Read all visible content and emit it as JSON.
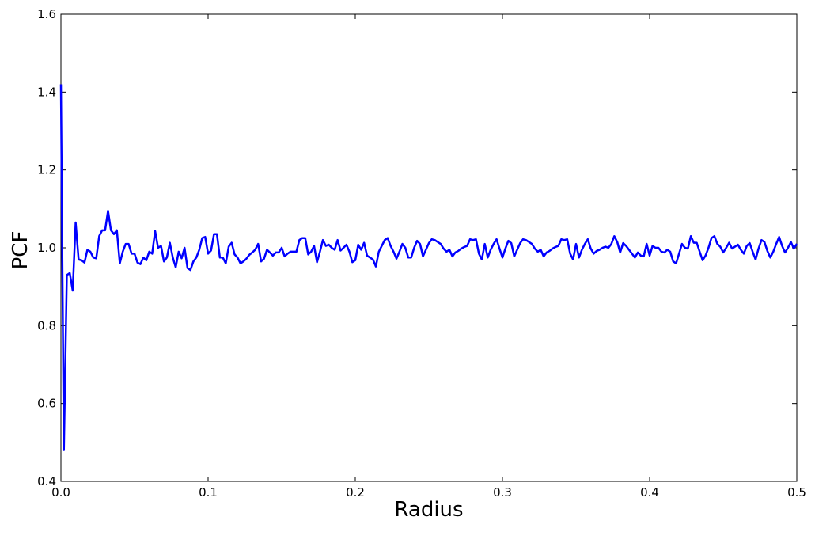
{
  "chart_data": {
    "type": "line",
    "xlabel": "Radius",
    "ylabel": "PCF",
    "xlim": [
      0,
      0.5
    ],
    "ylim": [
      0.4,
      1.6
    ],
    "xticks": [
      {
        "value": 0,
        "label": "0.0"
      },
      0.1,
      0.2,
      0.3,
      0.4,
      0.5
    ],
    "yticks": [
      0.4,
      0.6,
      0.8,
      {
        "value": 1,
        "label": "1.0"
      },
      1.2,
      1.4,
      1.6
    ],
    "x": [
      0,
      0.002,
      0.004,
      0.006,
      0.008,
      0.01,
      0.012,
      0.014,
      0.016,
      0.018,
      0.02,
      0.022,
      0.024,
      0.026,
      0.028,
      0.03,
      0.032,
      0.034,
      0.036,
      0.038,
      0.04,
      0.042,
      0.044,
      0.046,
      0.048,
      0.05,
      0.052,
      0.054,
      0.056,
      0.058,
      0.06,
      0.062,
      0.064,
      0.066,
      0.068,
      0.07,
      0.072,
      0.074,
      0.076,
      0.078,
      0.08,
      0.082,
      0.084,
      0.086,
      0.088,
      0.09,
      0.092,
      0.094,
      0.096,
      0.098,
      0.1,
      0.102,
      0.104,
      0.106,
      0.108,
      0.11,
      0.112,
      0.114,
      0.116,
      0.118,
      0.12,
      0.122,
      0.124,
      0.126,
      0.128,
      0.13,
      0.132,
      0.134,
      0.136,
      0.138,
      0.14,
      0.142,
      0.144,
      0.146,
      0.148,
      0.15,
      0.152,
      0.154,
      0.156,
      0.158,
      0.16,
      0.162,
      0.164,
      0.166,
      0.168,
      0.17,
      0.172,
      0.174,
      0.176,
      0.178,
      0.18,
      0.182,
      0.184,
      0.186,
      0.188,
      0.19,
      0.192,
      0.194,
      0.196,
      0.198,
      0.2,
      0.202,
      0.204,
      0.206,
      0.208,
      0.21,
      0.212,
      0.214,
      0.216,
      0.218,
      0.22,
      0.222,
      0.224,
      0.226,
      0.228,
      0.23,
      0.232,
      0.234,
      0.236,
      0.238,
      0.24,
      0.242,
      0.244,
      0.246,
      0.248,
      0.25,
      0.252,
      0.254,
      0.256,
      0.258,
      0.26,
      0.262,
      0.264,
      0.266,
      0.268,
      0.27,
      0.272,
      0.274,
      0.276,
      0.278,
      0.28,
      0.282,
      0.284,
      0.286,
      0.288,
      0.29,
      0.292,
      0.294,
      0.296,
      0.298,
      0.3,
      0.302,
      0.304,
      0.306,
      0.308,
      0.31,
      0.312,
      0.314,
      0.316,
      0.318,
      0.32,
      0.322,
      0.324,
      0.326,
      0.328,
      0.33,
      0.332,
      0.334,
      0.336,
      0.338,
      0.34,
      0.342,
      0.344,
      0.346,
      0.348,
      0.35,
      0.352,
      0.354,
      0.356,
      0.358,
      0.36,
      0.362,
      0.364,
      0.366,
      0.368,
      0.37,
      0.372,
      0.374,
      0.376,
      0.378,
      0.38,
      0.382,
      0.384,
      0.386,
      0.388,
      0.39,
      0.392,
      0.394,
      0.396,
      0.398,
      0.4,
      0.402,
      0.404,
      0.406,
      0.408,
      0.41,
      0.412,
      0.414,
      0.416,
      0.418,
      0.42,
      0.422,
      0.424,
      0.426,
      0.428,
      0.43,
      0.432,
      0.434,
      0.436,
      0.438,
      0.44,
      0.442,
      0.444,
      0.446,
      0.448,
      0.45,
      0.452,
      0.454,
      0.456,
      0.458,
      0.46,
      0.462,
      0.464,
      0.466,
      0.468,
      0.47,
      0.472,
      0.474,
      0.476,
      0.478,
      0.48,
      0.482,
      0.484,
      0.486,
      0.488,
      0.49,
      0.492,
      0.494,
      0.496,
      0.498,
      0.5
    ],
    "series": [
      {
        "color": "#0000ff",
        "values": [
          1.42,
          0.48,
          0.93,
          0.935,
          0.89,
          1.065,
          0.97,
          0.968,
          0.962,
          0.995,
          0.99,
          0.975,
          0.973,
          1.03,
          1.045,
          1.045,
          1.095,
          1.045,
          1.035,
          1.045,
          0.96,
          0.99,
          1.01,
          1.01,
          0.985,
          0.985,
          0.962,
          0.958,
          0.975,
          0.968,
          0.99,
          0.985,
          1.043,
          1.0,
          1.005,
          0.965,
          0.975,
          1.013,
          0.975,
          0.95,
          0.99,
          0.973,
          1.0,
          0.948,
          0.943,
          0.965,
          0.975,
          0.995,
          1.025,
          1.028,
          0.985,
          0.993,
          1.035,
          1.035,
          0.975,
          0.975,
          0.96,
          1.003,
          1.013,
          0.983,
          0.975,
          0.96,
          0.965,
          0.972,
          0.982,
          0.988,
          0.995,
          1.01,
          0.965,
          0.972,
          0.995,
          0.988,
          0.98,
          0.988,
          0.988,
          1.0,
          0.978,
          0.985,
          0.99,
          0.99,
          0.99,
          1.02,
          1.025,
          1.025,
          0.983,
          0.99,
          1.005,
          0.963,
          0.99,
          1.02,
          1.005,
          1.008,
          1.0,
          0.995,
          1.02,
          0.993,
          1.0,
          1.008,
          0.99,
          0.963,
          0.968,
          1.008,
          0.995,
          1.013,
          0.98,
          0.975,
          0.97,
          0.952,
          0.99,
          1.005,
          1.02,
          1.025,
          1.005,
          0.99,
          0.972,
          0.99,
          1.01,
          1.0,
          0.975,
          0.975,
          1.0,
          1.018,
          1.01,
          0.978,
          0.995,
          1.012,
          1.022,
          1.02,
          1.015,
          1.01,
          0.998,
          0.99,
          0.995,
          0.978,
          0.988,
          0.992,
          0.998,
          1.002,
          1.005,
          1.022,
          1.02,
          1.022,
          0.985,
          0.97,
          1.01,
          0.975,
          0.995,
          1.01,
          1.022,
          0.998,
          0.975,
          0.998,
          1.018,
          1.012,
          0.978,
          0.995,
          1.012,
          1.022,
          1.02,
          1.015,
          1.01,
          0.998,
          0.99,
          0.995,
          0.978,
          0.988,
          0.992,
          0.998,
          1.002,
          1.005,
          1.022,
          1.02,
          1.022,
          0.985,
          0.97,
          1.01,
          0.975,
          0.995,
          1.01,
          1.022,
          0.998,
          0.985,
          0.992,
          0.995,
          1.0,
          1.003,
          1.0,
          1.01,
          1.03,
          1.015,
          0.988,
          1.012,
          1.005,
          0.995,
          0.985,
          0.975,
          0.988,
          0.98,
          0.978,
          1.01,
          0.98,
          1.005,
          1.0,
          1.0,
          0.99,
          0.988,
          0.995,
          0.99,
          0.965,
          0.96,
          0.985,
          1.01,
          1.0,
          0.998,
          1.03,
          1.013,
          1.013,
          0.99,
          0.968,
          0.98,
          1.0,
          1.025,
          1.03,
          1.01,
          1.003,
          0.988,
          1.0,
          1.013,
          0.998,
          1.003,
          1.008,
          0.995,
          0.985,
          1.005,
          1.012,
          0.99,
          0.97,
          0.998,
          1.02,
          1.015,
          0.992,
          0.975,
          0.99,
          1.01,
          1.028,
          1.005,
          0.988,
          1.0,
          1.015,
          0.998,
          1.01
        ]
      }
    ]
  }
}
